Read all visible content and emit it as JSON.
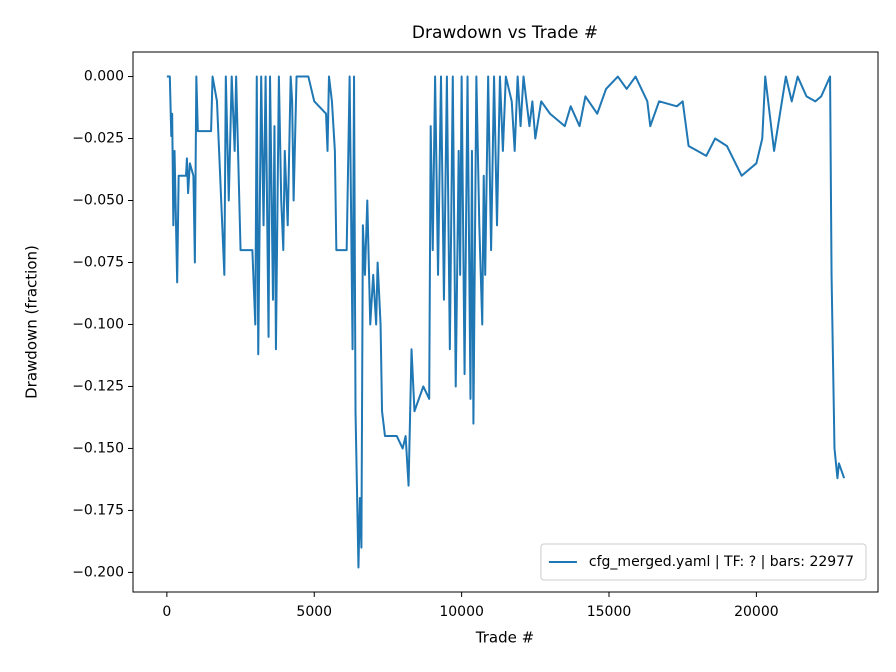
{
  "chart_data": {
    "type": "line",
    "title": "Drawdown vs Trade #",
    "xlabel": "Trade #",
    "ylabel": "Drawdown (fraction)",
    "legend": "lower right",
    "x": [
      0,
      100,
      150,
      180,
      220,
      260,
      350,
      400,
      650,
      680,
      720,
      780,
      900,
      950,
      1000,
      1050,
      1500,
      1550,
      1700,
      1950,
      2000,
      2100,
      2200,
      2300,
      2350,
      2500,
      2900,
      3000,
      3050,
      3100,
      3200,
      3280,
      3350,
      3450,
      3500,
      3600,
      3650,
      3700,
      3800,
      3880,
      3950,
      4000,
      4100,
      4200,
      4250,
      4300,
      4400,
      4800,
      5000,
      5400,
      5450,
      5500,
      5600,
      5700,
      5750,
      6100,
      6200,
      6300,
      6350,
      6400,
      6500,
      6550,
      6600,
      6650,
      6720,
      6800,
      6900,
      7000,
      7100,
      7150,
      7250,
      7300,
      7400,
      7800,
      8000,
      8100,
      8200,
      8300,
      8400,
      8700,
      8900,
      8950,
      9020,
      9100,
      9200,
      9300,
      9400,
      9500,
      9600,
      9700,
      9800,
      9900,
      9950,
      10000,
      10100,
      10200,
      10300,
      10350,
      10400,
      10500,
      10600,
      10700,
      10750,
      10800,
      10900,
      11000,
      11100,
      11200,
      11300,
      11400,
      11500,
      11700,
      11800,
      11900,
      12000,
      12100,
      12300,
      12400,
      12500,
      12700,
      13000,
      13500,
      13700,
      14000,
      14200,
      14600,
      14900,
      15300,
      15600,
      15900,
      16300,
      16400,
      16700,
      17300,
      17500,
      17700,
      18000,
      18300,
      18600,
      19000,
      19500,
      20000,
      20200,
      20300,
      20500,
      20600,
      21000,
      21200,
      21400,
      21700,
      22000,
      22200,
      22500,
      22550,
      22650,
      22750,
      22800,
      22977
    ],
    "series": [
      {
        "name": "cfg_merged.yaml | TF: ? | bars: 22977",
        "color": "#1f77b4",
        "values": [
          0,
          0,
          -0.024,
          -0.015,
          -0.06,
          -0.03,
          -0.083,
          -0.04,
          -0.04,
          -0.033,
          -0.047,
          -0.035,
          -0.04,
          -0.075,
          0,
          -0.022,
          -0.022,
          0,
          -0.01,
          -0.08,
          0,
          -0.05,
          0,
          -0.03,
          0,
          -0.07,
          -0.07,
          -0.1,
          0,
          -0.112,
          0,
          -0.06,
          0,
          -0.105,
          0,
          -0.09,
          -0.02,
          -0.11,
          0,
          -0.05,
          -0.07,
          -0.03,
          -0.06,
          0,
          -0.01,
          -0.05,
          0,
          0,
          -0.01,
          -0.015,
          -0.03,
          0,
          -0.01,
          -0.03,
          -0.07,
          -0.07,
          0,
          -0.11,
          0,
          -0.135,
          -0.198,
          -0.17,
          -0.19,
          -0.06,
          -0.08,
          -0.05,
          -0.1,
          -0.08,
          -0.1,
          -0.075,
          -0.1,
          -0.135,
          -0.145,
          -0.145,
          -0.15,
          -0.145,
          -0.165,
          -0.11,
          -0.135,
          -0.125,
          -0.13,
          -0.02,
          -0.07,
          0,
          -0.08,
          0,
          -0.09,
          0,
          -0.11,
          0,
          -0.125,
          -0.03,
          -0.08,
          0,
          -0.12,
          0,
          -0.13,
          -0.03,
          -0.14,
          0,
          -0.06,
          -0.1,
          -0.04,
          -0.08,
          0,
          -0.07,
          0,
          -0.06,
          0,
          -0.03,
          0,
          -0.01,
          -0.03,
          0,
          -0.02,
          0,
          -0.02,
          -0.01,
          -0.025,
          -0.01,
          -0.015,
          -0.02,
          -0.012,
          -0.02,
          -0.008,
          -0.015,
          -0.005,
          0,
          -0.005,
          0,
          -0.01,
          -0.02,
          -0.01,
          -0.012,
          -0.01,
          -0.028,
          -0.03,
          -0.032,
          -0.025,
          -0.028,
          -0.04,
          -0.035,
          -0.025,
          0,
          -0.02,
          -0.03,
          0,
          -0.01,
          0,
          -0.008,
          -0.01,
          -0.008,
          0,
          -0.08,
          -0.15,
          -0.162,
          -0.156,
          -0.162
        ]
      }
    ],
    "xlim": [
      -1149,
      24126
    ],
    "xticks": [
      0,
      5000,
      10000,
      15000,
      20000
    ],
    "ylim": [
      -0.2079,
      0.0099
    ],
    "yticks": [
      {
        "value": 0,
        "label": "0.000"
      },
      {
        "value": -0.025,
        "label": "−0.025"
      },
      {
        "value": -0.05,
        "label": "−0.050"
      },
      {
        "value": -0.075,
        "label": "−0.075"
      },
      {
        "value": -0.1,
        "label": "−0.100"
      },
      {
        "value": -0.125,
        "label": "−0.125"
      },
      {
        "value": -0.15,
        "label": "−0.150"
      },
      {
        "value": -0.175,
        "label": "−0.175"
      },
      {
        "value": -0.2,
        "label": "−0.200"
      }
    ],
    "grid": false
  }
}
